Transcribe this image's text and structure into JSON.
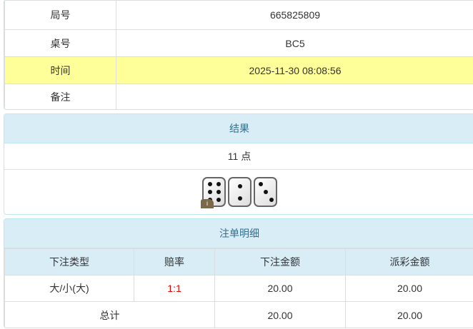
{
  "info": {
    "rows": [
      {
        "label": "局号",
        "value": "665825809"
      },
      {
        "label": "桌号",
        "value": "BC5"
      },
      {
        "label": "时间",
        "value": "2025-11-30 08:08:56"
      },
      {
        "label": "备注",
        "value": ""
      }
    ]
  },
  "result": {
    "title": "结果",
    "points": "11 点",
    "dice": [
      6,
      2,
      3
    ],
    "info_badge": "i"
  },
  "bets": {
    "title": "注单明细",
    "headers": [
      "下注类型",
      "赔率",
      "下注金额",
      "派彩金额"
    ],
    "rows": [
      {
        "type": "大/小(大)",
        "odds": "1:1",
        "amount": "20.00",
        "payout": "20.00"
      }
    ],
    "total": {
      "label": "总计",
      "amount": "20.00",
      "payout": "20.00"
    }
  },
  "colors": {
    "header_bg": "#d9edf7",
    "highlight": "#ffff99",
    "odds": "#ee0000"
  }
}
